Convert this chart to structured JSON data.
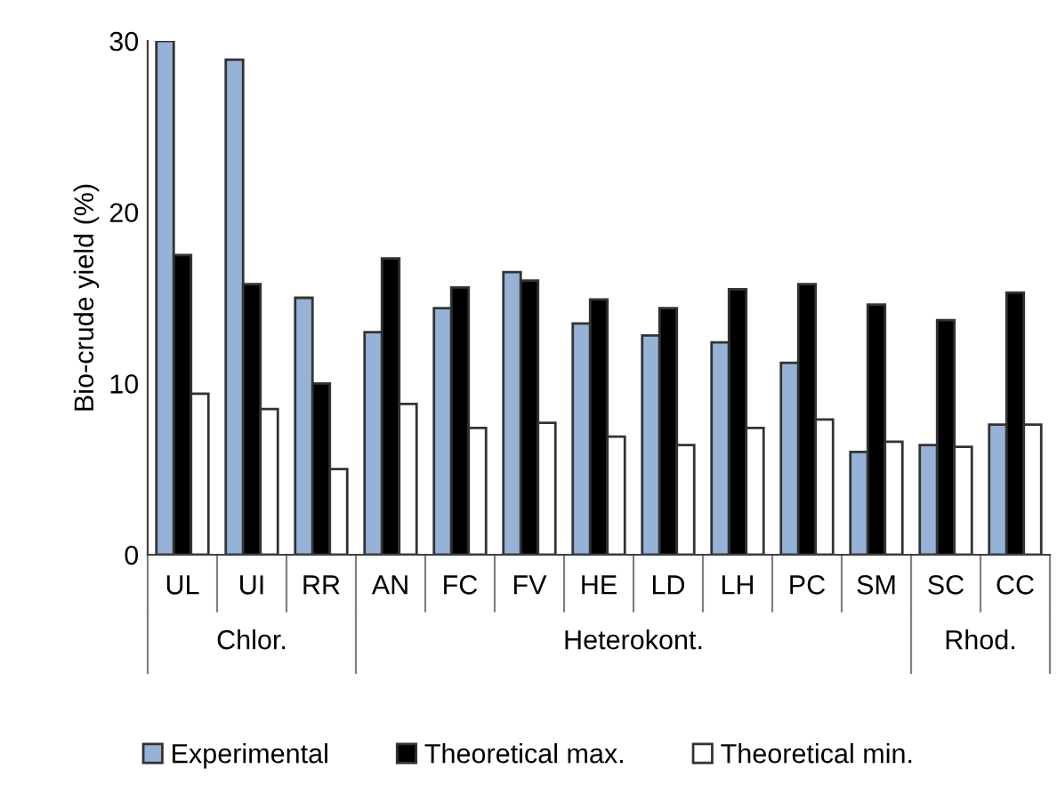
{
  "chart_data": {
    "type": "bar",
    "ylabel": "Bio-crude yield (%)",
    "categories": [
      "UL",
      "UI",
      "RR",
      "AN",
      "FC",
      "FV",
      "HE",
      "LD",
      "LH",
      "PC",
      "SM",
      "SC",
      "CC"
    ],
    "series": [
      {
        "name": "Experimental",
        "color": "#95b3d7",
        "values": [
          30.0,
          28.9,
          15.0,
          13.0,
          14.4,
          16.5,
          13.5,
          12.8,
          12.4,
          11.2,
          6.0,
          6.4,
          7.6
        ]
      },
      {
        "name": "Theoretical max.",
        "color": "#000000",
        "values": [
          17.5,
          15.8,
          10.0,
          17.3,
          15.6,
          16.0,
          14.9,
          14.4,
          15.5,
          15.8,
          14.6,
          13.7,
          15.3
        ]
      },
      {
        "name": "Theoretical min.",
        "color": "#ffffff",
        "values": [
          9.4,
          8.5,
          5.0,
          8.8,
          7.4,
          7.7,
          6.9,
          6.4,
          7.4,
          7.9,
          6.6,
          6.3,
          7.6
        ]
      }
    ],
    "annotations": [
      "Chlor.",
      "Heterokont.",
      "Rhod."
    ],
    "ylim": [
      0,
      30
    ],
    "yticks": [
      0,
      10,
      20,
      30
    ],
    "grid": false,
    "legend": "bottom"
  }
}
